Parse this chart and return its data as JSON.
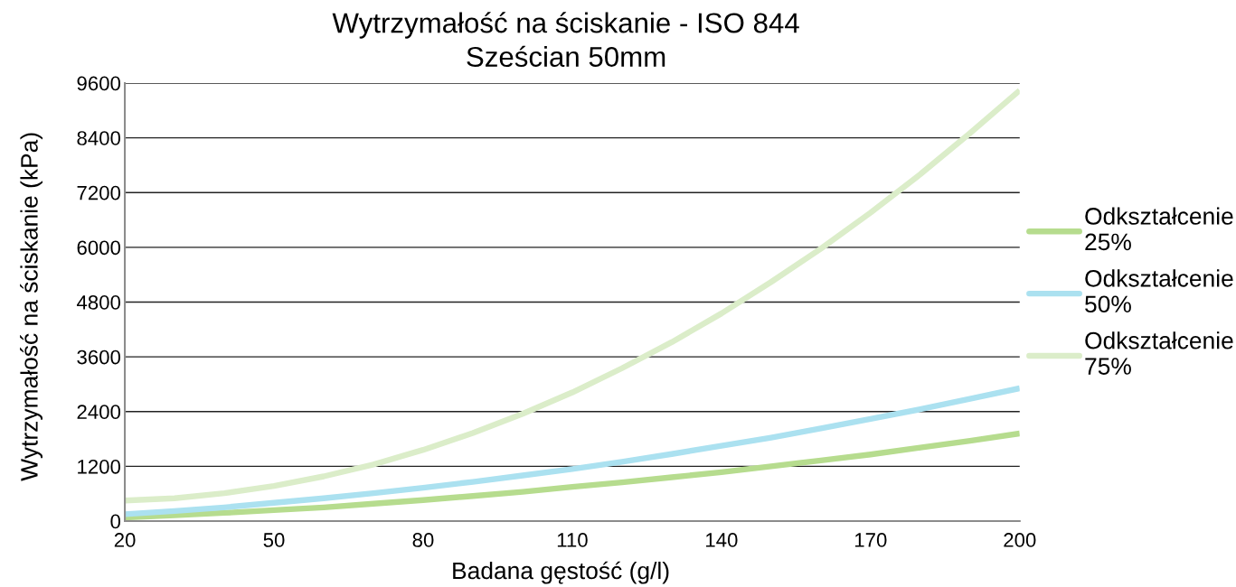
{
  "chart_data": {
    "type": "line",
    "title": "Wytrzymałość na ściskanie - ISO 844",
    "subtitle": "Sześcian 50mm",
    "xlabel": "Badana gęstość (g/l)",
    "ylabel": "Wytrzymałość na ściskanie (kPa)",
    "x": [
      20,
      30,
      40,
      50,
      60,
      70,
      80,
      90,
      100,
      110,
      120,
      130,
      140,
      150,
      160,
      170,
      180,
      190,
      200
    ],
    "series": [
      {
        "name": "Odkształcenie 25%",
        "color": "#b6dc8e",
        "values": [
          80,
          130,
          180,
          240,
          300,
          380,
          460,
          550,
          640,
          750,
          850,
          960,
          1070,
          1200,
          1330,
          1460,
          1610,
          1760,
          1920
        ]
      },
      {
        "name": "Odkształcenie 50%",
        "color": "#abe1f0",
        "values": [
          150,
          220,
          300,
          400,
          500,
          610,
          730,
          860,
          1000,
          1140,
          1300,
          1470,
          1650,
          1830,
          2030,
          2240,
          2450,
          2680,
          2910
        ]
      },
      {
        "name": "Odkształcenie 75%",
        "color": "#dbedc9",
        "values": [
          450,
          500,
          610,
          770,
          980,
          1240,
          1560,
          1930,
          2350,
          2820,
          3350,
          3920,
          4550,
          5240,
          5970,
          6760,
          7600,
          8500,
          9440
        ]
      }
    ],
    "xlim": [
      20,
      200
    ],
    "xticks": [
      20,
      50,
      80,
      110,
      140,
      170,
      200
    ],
    "ylim": [
      0,
      9600
    ],
    "yticks": [
      0,
      1200,
      2400,
      3600,
      4800,
      6000,
      7200,
      8400,
      9600
    ],
    "grid": "y",
    "legend": "right",
    "marker": "none",
    "line_style": "solid"
  }
}
